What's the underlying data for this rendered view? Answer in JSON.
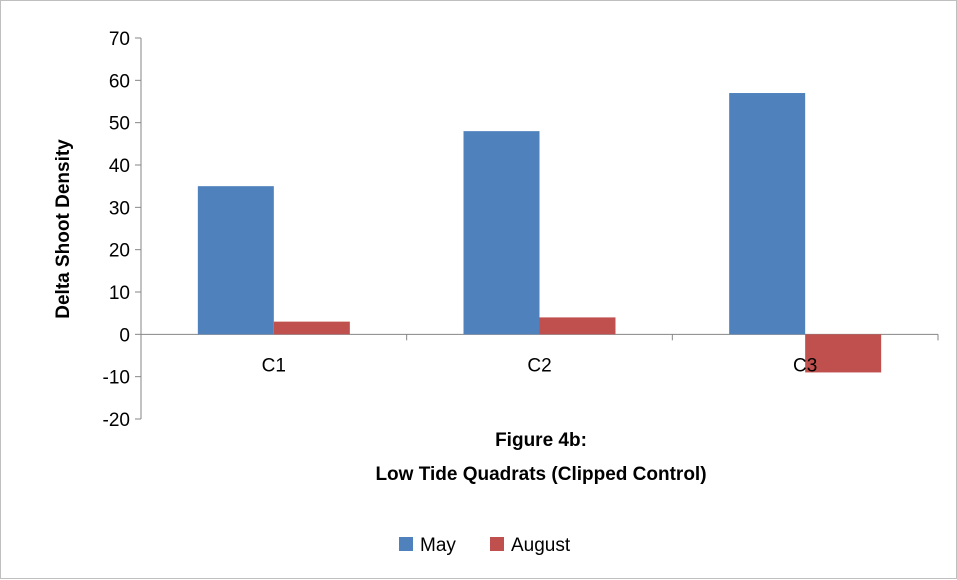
{
  "chart_data": {
    "type": "bar",
    "title": "Figure 4b:",
    "subtitle": "Low Tide Quadrats (Clipped Control)",
    "xlabel": "",
    "ylabel": "Delta Shoot Density",
    "categories": [
      "C1",
      "C2",
      "C3"
    ],
    "series": [
      {
        "name": "May",
        "values": [
          35,
          48,
          57
        ],
        "color": "#4f81bd"
      },
      {
        "name": "August",
        "values": [
          3,
          4,
          -9
        ],
        "color": "#c0504d"
      }
    ],
    "ylim": [
      -20,
      70
    ],
    "yticks": [
      -20,
      -10,
      0,
      10,
      20,
      30,
      40,
      50,
      60,
      70
    ],
    "grid": false,
    "legend": "bottom"
  }
}
